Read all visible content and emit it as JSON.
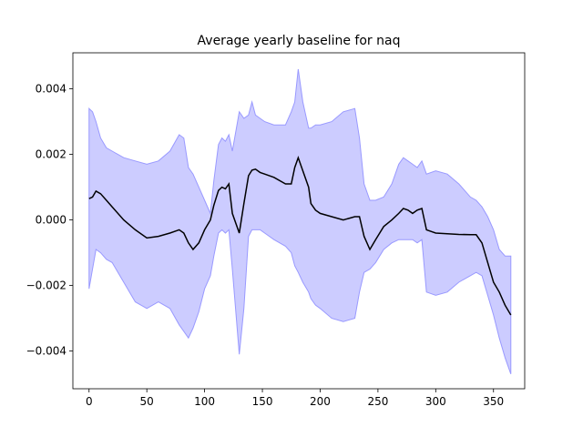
{
  "chart_data": {
    "type": "area",
    "title": "Average yearly baseline for naq",
    "xlabel": "",
    "ylabel": "",
    "xlim": [
      -14,
      377
    ],
    "ylim": [
      -0.00515,
      0.0051
    ],
    "xticks": [
      0,
      50,
      100,
      150,
      200,
      250,
      300,
      350
    ],
    "xtick_labels": [
      "0",
      "50",
      "100",
      "150",
      "200",
      "250",
      "300",
      "350"
    ],
    "yticks": [
      -0.004,
      -0.002,
      0.0,
      0.002,
      0.004
    ],
    "ytick_labels": [
      "−0.004",
      "−0.002",
      "0.000",
      "0.002",
      "0.004"
    ],
    "grid": false,
    "colors": {
      "mean_line": "#000000",
      "band_fill": "#ccccff",
      "band_edge": "#9999ff"
    },
    "series": [
      {
        "kind": "line",
        "x": [
          0,
          3,
          6,
          10,
          15,
          20,
          30,
          40,
          50,
          60,
          70,
          78,
          82,
          86,
          90,
          95,
          100,
          105,
          108,
          112,
          115,
          118,
          121,
          124,
          130,
          134,
          138,
          141,
          144,
          148,
          152,
          160,
          170,
          175,
          178,
          181,
          185,
          190,
          192,
          196,
          200,
          210,
          220,
          230,
          234,
          238,
          243,
          248,
          255,
          262,
          268,
          272,
          276,
          280,
          284,
          288,
          292,
          300,
          310,
          320,
          330,
          335,
          340,
          345,
          350,
          355,
          360,
          365
        ],
        "y": [
          0.00065,
          0.0007,
          0.00088,
          0.0008,
          0.0006,
          0.0004,
          0.0,
          -0.0003,
          -0.00055,
          -0.0005,
          -0.0004,
          -0.0003,
          -0.0004,
          -0.0007,
          -0.0009,
          -0.0007,
          -0.0003,
          0.0,
          0.00045,
          0.0009,
          0.001,
          0.00095,
          0.0011,
          0.0002,
          -0.0004,
          0.0005,
          0.00135,
          0.00152,
          0.00155,
          0.00145,
          0.0014,
          0.0013,
          0.0011,
          0.0011,
          0.0016,
          0.0019,
          0.0015,
          0.001,
          0.0005,
          0.0003,
          0.0002,
          0.0001,
          0.0,
          0.0001,
          0.0001,
          -0.0005,
          -0.0009,
          -0.0006,
          -0.0002,
          0.0,
          0.0002,
          0.00035,
          0.0003,
          0.0002,
          0.0003,
          0.00035,
          -0.0003,
          -0.0004,
          -0.00042,
          -0.00044,
          -0.00045,
          -0.00045,
          -0.0007,
          -0.0013,
          -0.0019,
          -0.0022,
          -0.0026,
          -0.0029
        ]
      },
      {
        "kind": "band",
        "x": [
          0,
          3,
          6,
          10,
          15,
          20,
          30,
          40,
          50,
          60,
          70,
          78,
          82,
          86,
          90,
          95,
          100,
          105,
          108,
          112,
          115,
          118,
          121,
          124,
          130,
          134,
          138,
          141,
          144,
          148,
          152,
          160,
          170,
          175,
          178,
          181,
          185,
          190,
          192,
          196,
          200,
          210,
          220,
          230,
          234,
          238,
          243,
          248,
          255,
          262,
          268,
          272,
          276,
          280,
          284,
          288,
          292,
          300,
          310,
          320,
          330,
          335,
          340,
          345,
          350,
          355,
          360,
          365
        ],
        "upper": [
          0.0034,
          0.0033,
          0.003,
          0.0025,
          0.0022,
          0.0021,
          0.0019,
          0.0018,
          0.0017,
          0.0018,
          0.0021,
          0.0026,
          0.0025,
          0.0016,
          0.0014,
          0.001,
          0.0006,
          0.0002,
          0.0012,
          0.0023,
          0.0025,
          0.0024,
          0.0026,
          0.0021,
          0.0033,
          0.0031,
          0.0032,
          0.0036,
          0.0032,
          0.0031,
          0.003,
          0.0029,
          0.0029,
          0.0033,
          0.0036,
          0.0046,
          0.0036,
          0.0028,
          0.0028,
          0.0029,
          0.0029,
          0.003,
          0.0033,
          0.0034,
          0.0025,
          0.0011,
          0.0006,
          0.0006,
          0.0007,
          0.0011,
          0.0017,
          0.0019,
          0.0018,
          0.0017,
          0.0016,
          0.0018,
          0.0014,
          0.0015,
          0.0014,
          0.0011,
          0.0007,
          0.0006,
          0.0004,
          0.0001,
          -0.0003,
          -0.0009,
          -0.0011,
          -0.0011
        ],
        "lower": [
          -0.0021,
          -0.0015,
          -0.0009,
          -0.001,
          -0.0012,
          -0.0013,
          -0.0019,
          -0.0025,
          -0.0027,
          -0.0025,
          -0.0027,
          -0.0032,
          -0.0034,
          -0.0036,
          -0.0033,
          -0.0028,
          -0.0021,
          -0.0017,
          -0.0011,
          -0.0004,
          -0.0003,
          -0.0004,
          -0.0003,
          -0.0015,
          -0.0041,
          -0.0027,
          -0.0005,
          -0.0003,
          -0.0003,
          -0.0003,
          -0.0004,
          -0.0006,
          -0.0008,
          -0.001,
          -0.0014,
          -0.0016,
          -0.0019,
          -0.0022,
          -0.0024,
          -0.0026,
          -0.0027,
          -0.003,
          -0.0031,
          -0.003,
          -0.0022,
          -0.0016,
          -0.0015,
          -0.0013,
          -0.0009,
          -0.0007,
          -0.0006,
          -0.0006,
          -0.0006,
          -0.0006,
          -0.0007,
          -0.0006,
          -0.0022,
          -0.0023,
          -0.0022,
          -0.0019,
          -0.0017,
          -0.0016,
          -0.0017,
          -0.0023,
          -0.0029,
          -0.0036,
          -0.0042,
          -0.0047
        ]
      }
    ]
  }
}
